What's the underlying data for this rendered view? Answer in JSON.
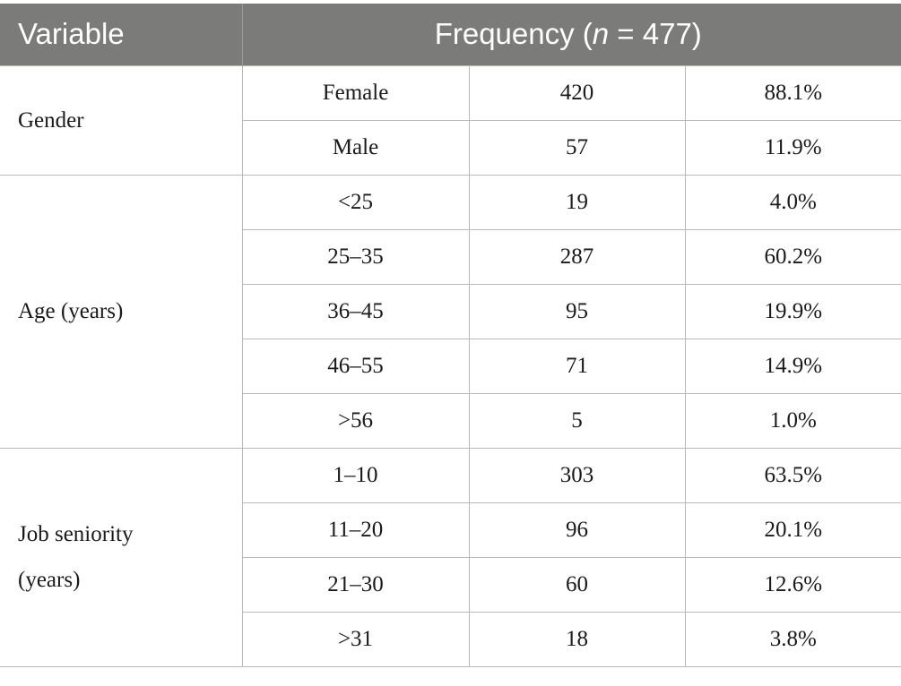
{
  "header": {
    "variable_label": "Variable",
    "frequency_prefix": "Frequency (",
    "frequency_n": "n",
    "frequency_suffix": " = 477)"
  },
  "groups": [
    {
      "variable": "Gender",
      "rows": [
        {
          "category": "Female",
          "count": "420",
          "percent": "88.1%"
        },
        {
          "category": "Male",
          "count": "57",
          "percent": "11.9%"
        }
      ]
    },
    {
      "variable": "Age (years)",
      "rows": [
        {
          "category": "<25",
          "count": "19",
          "percent": "4.0%"
        },
        {
          "category": "25–35",
          "count": "287",
          "percent": "60.2%"
        },
        {
          "category": "36–45",
          "count": "95",
          "percent": "19.9%"
        },
        {
          "category": "46–55",
          "count": "71",
          "percent": "14.9%"
        },
        {
          "category": ">56",
          "count": "5",
          "percent": "1.0%"
        }
      ]
    },
    {
      "variable_line1": "Job seniority",
      "variable_line2": "(years)",
      "rows": [
        {
          "category": "1–10",
          "count": "303",
          "percent": "63.5%"
        },
        {
          "category": "11–20",
          "count": "96",
          "percent": "20.1%"
        },
        {
          "category": "21–30",
          "count": "60",
          "percent": "12.6%"
        },
        {
          "category": ">31",
          "count": "18",
          "percent": "3.8%"
        }
      ]
    }
  ],
  "colors": {
    "header_background": "#7b7b7a",
    "header_text": "#ffffff",
    "grid_lines": "#b9b9b9",
    "body_text": "#1a1a1a"
  }
}
